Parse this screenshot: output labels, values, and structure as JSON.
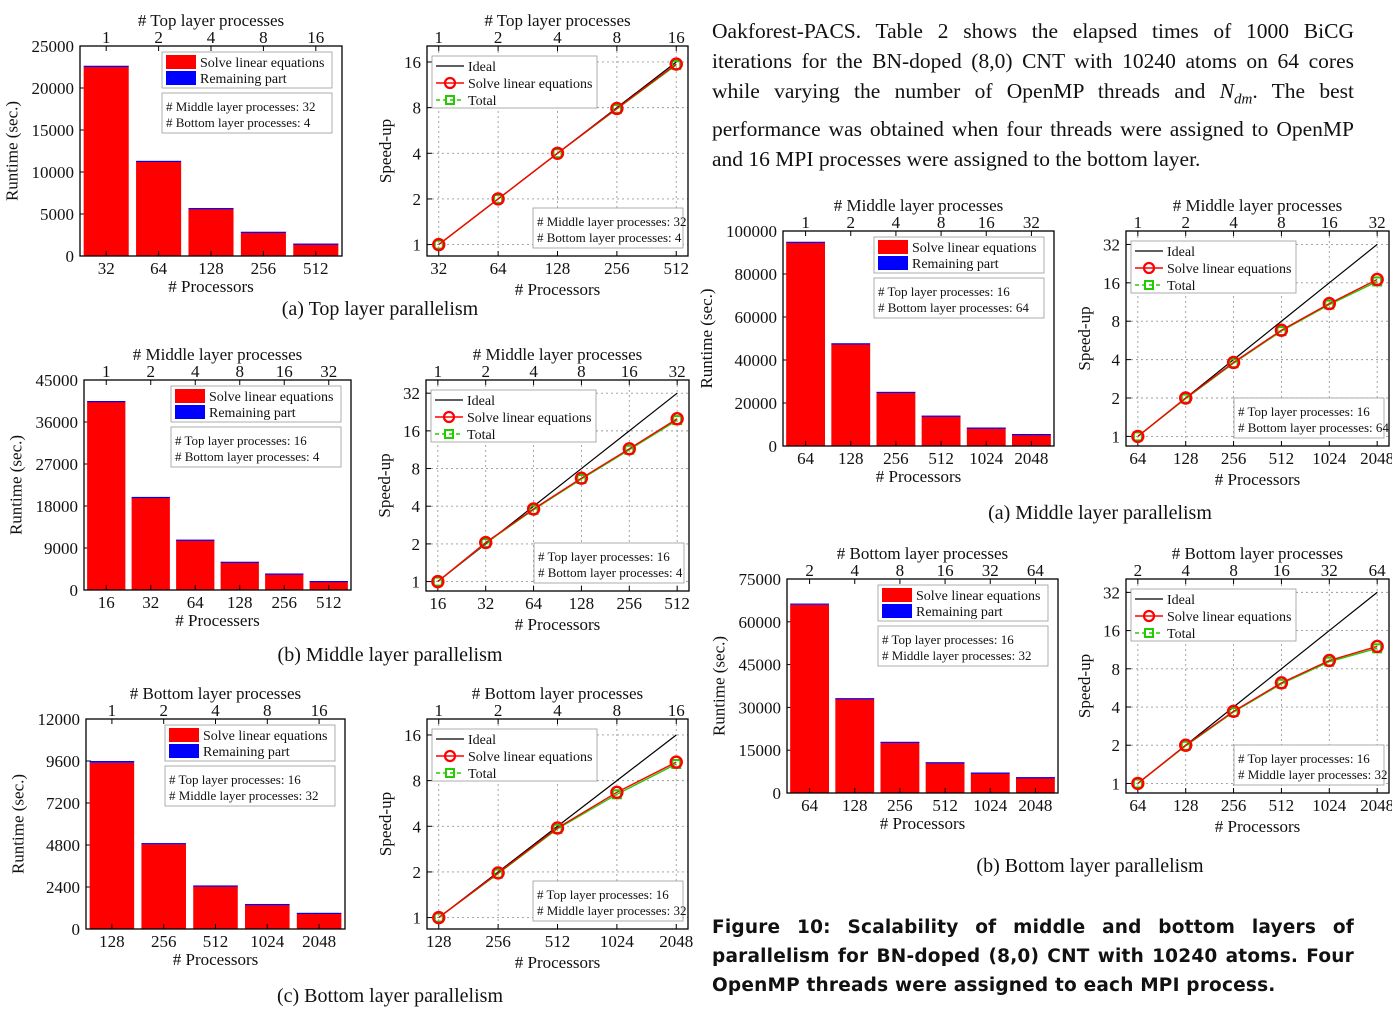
{
  "paragraph": "Oakforest-PACS. Table 2 shows the elapsed times of 1000 BiCG iterations for the BN-doped (8,0) CNT with 10240 atoms on 64 cores while varying the number of OpenMP threads and N_dm. The best performance was obtained when four threads were assigned to OpenMP and 16 MPI processes were assigned to the bottom layer.",
  "paragraph_parts": {
    "before": "Oakforest-PACS. Table 2 shows the elapsed times of 1000 BiCG iterations for the BN-doped (8,0) CNT with 10240 atoms on 64 cores while varying the number of OpenMP threads and ",
    "symbol": "N",
    "subscript": "dm",
    "after": ". The best performance was obtained when four threads were assigned to OpenMP and 16 MPI processes were assigned to the bottom layer."
  },
  "figure_caption": "Figure 10: Scalability of middle and bottom layers of parallelism for BN-doped (8,0) CNT with 10240 atoms. Four OpenMP threads were assigned to each MPI process.",
  "subcaptions": {
    "left_a": "(a) Top layer parallelism",
    "left_b": "(b) Middle layer parallelism",
    "left_c": "(c) Bottom layer parallelism",
    "right_a": "(a) Middle layer parallelism",
    "right_b": "(b) Bottom layer parallelism"
  },
  "colors": {
    "solve": "#ff0000",
    "remaining": "#0000ff",
    "ideal": "#000000",
    "solve_line": "#ff0000",
    "total": "#22cc00",
    "grid": "#9a9a9a"
  },
  "chart_data": [
    {
      "id": "L1bar",
      "type": "bar",
      "top_label": "# Top layer processes",
      "top_ticks": [
        "1",
        "2",
        "4",
        "8",
        "16"
      ],
      "categories": [
        "32",
        "64",
        "128",
        "256",
        "512"
      ],
      "xlabel": "# Processors",
      "ylabel": "Runtime (sec.)",
      "ylim": [
        0,
        25000
      ],
      "yticks": [
        "0",
        "5000",
        "10000",
        "15000",
        "20000",
        "25000"
      ],
      "series": [
        {
          "name": "Solve linear equations",
          "values": [
            22500,
            11250,
            5650,
            2850,
            1450
          ]
        },
        {
          "name": "Remaining part",
          "values": [
            150,
            80,
            60,
            40,
            30
          ]
        }
      ],
      "info": [
        "# Middle layer processes: 32",
        "# Bottom layer processes: 4"
      ]
    },
    {
      "id": "L1line",
      "type": "line",
      "top_label": "# Top layer processes",
      "top_ticks": [
        "1",
        "2",
        "4",
        "8",
        "16"
      ],
      "categories": [
        "32",
        "64",
        "128",
        "256",
        "512"
      ],
      "xlabel": "# Processors",
      "ylabel": "Speed-up",
      "yscale": "log2",
      "yticks": [
        "1",
        "2",
        "4",
        "8",
        "16"
      ],
      "series": [
        {
          "name": "Ideal",
          "values": [
            1,
            2,
            4,
            8,
            16
          ]
        },
        {
          "name": "Solve linear equations",
          "values": [
            1,
            2,
            4,
            7.9,
            15.5
          ]
        },
        {
          "name": "Total",
          "values": [
            1,
            2,
            4,
            7.85,
            15.3
          ]
        }
      ],
      "info": [
        "# Middle layer processes: 32",
        "# Bottom layer processes: 4"
      ]
    },
    {
      "id": "L2bar",
      "type": "bar",
      "top_label": "# Middle layer processes",
      "top_ticks": [
        "1",
        "2",
        "4",
        "8",
        "16",
        "32"
      ],
      "categories": [
        "16",
        "32",
        "64",
        "128",
        "256",
        "512"
      ],
      "xlabel": "# Processers",
      "ylabel": "Runtime (sec.)",
      "ylim": [
        0,
        45000
      ],
      "yticks": [
        "0",
        "9000",
        "18000",
        "27000",
        "36000",
        "45000"
      ],
      "series": [
        {
          "name": "Solve linear equations",
          "values": [
            40300,
            19800,
            10700,
            6000,
            3500,
            1900
          ]
        },
        {
          "name": "Remaining part",
          "values": [
            200,
            150,
            100,
            60,
            40,
            30
          ]
        }
      ],
      "info": [
        "# Top      layer processes: 16",
        "# Bottom layer processes: 4"
      ]
    },
    {
      "id": "L2line",
      "type": "line",
      "top_label": "# Middle layer processes",
      "top_ticks": [
        "1",
        "2",
        "4",
        "8",
        "16",
        "32"
      ],
      "categories": [
        "16",
        "32",
        "64",
        "128",
        "256",
        "512"
      ],
      "xlabel": "# Processors",
      "ylabel": "Speed-up",
      "yscale": "log2",
      "yticks": [
        "1",
        "2",
        "4",
        "8",
        "16",
        "32"
      ],
      "series": [
        {
          "name": "Ideal",
          "values": [
            1,
            2,
            4,
            8,
            16,
            32
          ]
        },
        {
          "name": "Solve linear equations",
          "values": [
            1,
            2.05,
            3.8,
            6.7,
            11.5,
            20
          ]
        },
        {
          "name": "Total",
          "values": [
            1,
            2.03,
            3.75,
            6.6,
            11.3,
            19.5
          ]
        }
      ],
      "info": [
        "# Top      layer processes: 16",
        "# Bottom layer processes: 4"
      ]
    },
    {
      "id": "L3bar",
      "type": "bar",
      "top_label": "# Bottom layer processes",
      "top_ticks": [
        "1",
        "2",
        "4",
        "8",
        "16"
      ],
      "categories": [
        "128",
        "256",
        "512",
        "1024",
        "2048"
      ],
      "xlabel": "# Processors",
      "ylabel": "Runtime (sec.)",
      "ylim": [
        0,
        12000
      ],
      "yticks": [
        "0",
        "2400",
        "4800",
        "7200",
        "9600",
        "12000"
      ],
      "series": [
        {
          "name": "Solve linear equations",
          "values": [
            9500,
            4850,
            2450,
            1400,
            900
          ]
        },
        {
          "name": "Remaining part",
          "values": [
            100,
            60,
            40,
            30,
            25
          ]
        }
      ],
      "info": [
        "# Top      layer processes: 16",
        "# Middle layer processes: 32"
      ]
    },
    {
      "id": "L3line",
      "type": "line",
      "top_label": "# Bottom layer processes",
      "top_ticks": [
        "1",
        "2",
        "4",
        "8",
        "16"
      ],
      "categories": [
        "128",
        "256",
        "512",
        "1024",
        "2048"
      ],
      "xlabel": "# Processors",
      "ylabel": "Speed-up",
      "yscale": "log2",
      "yticks": [
        "1",
        "2",
        "4",
        "8",
        "16"
      ],
      "series": [
        {
          "name": "Ideal",
          "values": [
            1,
            2,
            4,
            8,
            16
          ]
        },
        {
          "name": "Solve linear equations",
          "values": [
            1,
            1.97,
            3.9,
            6.7,
            10.6
          ]
        },
        {
          "name": "Total",
          "values": [
            1,
            1.95,
            3.85,
            6.5,
            10.3
          ]
        }
      ],
      "info": [
        "# Top      layer processes: 16",
        "# Middle layer processes: 32"
      ]
    },
    {
      "id": "R1bar",
      "type": "bar",
      "top_label": "# Middle layer processes",
      "top_ticks": [
        "1",
        "2",
        "4",
        "8",
        "16",
        "32"
      ],
      "categories": [
        "64",
        "128",
        "256",
        "512",
        "1024",
        "2048"
      ],
      "xlabel": "# Processors",
      "ylabel": "Runtime (sec.)",
      "ylim": [
        0,
        100000
      ],
      "yticks": [
        "0",
        "20000",
        "40000",
        "60000",
        "80000",
        "100000"
      ],
      "series": [
        {
          "name": "Solve linear equations",
          "values": [
            94500,
            47500,
            25000,
            14000,
            8500,
            5500
          ]
        },
        {
          "name": "Remaining part",
          "values": [
            500,
            300,
            200,
            150,
            100,
            80
          ]
        }
      ],
      "info": [
        "# Top      layer processes: 16",
        "# Bottom layer processes: 64"
      ]
    },
    {
      "id": "R1line",
      "type": "line",
      "top_label": "# Middle layer processes",
      "top_ticks": [
        "1",
        "2",
        "4",
        "8",
        "16",
        "32"
      ],
      "categories": [
        "64",
        "128",
        "256",
        "512",
        "1024",
        "2048"
      ],
      "xlabel": "# Processors",
      "ylabel": "Speed-up",
      "yscale": "log2",
      "yticks": [
        "1",
        "2",
        "4",
        "8",
        "16",
        "32"
      ],
      "series": [
        {
          "name": "Ideal",
          "values": [
            1,
            2,
            4,
            8,
            16,
            32
          ]
        },
        {
          "name": "Solve linear equations",
          "values": [
            1,
            2,
            3.8,
            6.8,
            11,
            17
          ]
        },
        {
          "name": "Total",
          "values": [
            1,
            1.98,
            3.75,
            6.7,
            10.8,
            16.4
          ]
        }
      ],
      "info": [
        "# Top      layer processes: 16",
        "# Bottom layer processes: 64"
      ]
    },
    {
      "id": "R2bar",
      "type": "bar",
      "top_label": "# Bottom layer processes",
      "top_ticks": [
        "2",
        "4",
        "8",
        "16",
        "32",
        "64"
      ],
      "categories": [
        "64",
        "128",
        "256",
        "512",
        "1024",
        "2048"
      ],
      "xlabel": "# Processors",
      "ylabel": "Runtime (sec.)",
      "ylim": [
        0,
        75000
      ],
      "yticks": [
        "0",
        "15000",
        "30000",
        "45000",
        "60000",
        "75000"
      ],
      "series": [
        {
          "name": "Solve linear equations",
          "values": [
            66000,
            33000,
            17800,
            10700,
            7100,
            5500
          ]
        },
        {
          "name": "Remaining part",
          "values": [
            400,
            250,
            150,
            100,
            80,
            60
          ]
        }
      ],
      "info": [
        "# Top      layer processes: 16",
        "# Middle layer processes: 32"
      ]
    },
    {
      "id": "R2line",
      "type": "line",
      "top_label": "# Bottom layer processes",
      "top_ticks": [
        "2",
        "4",
        "8",
        "16",
        "32",
        "64"
      ],
      "categories": [
        "64",
        "128",
        "256",
        "512",
        "1024",
        "2048"
      ],
      "xlabel": "# Processors",
      "ylabel": "Speed-up",
      "yscale": "log2",
      "yticks": [
        "1",
        "2",
        "4",
        "8",
        "16",
        "32"
      ],
      "series": [
        {
          "name": "Ideal",
          "values": [
            1,
            2,
            4,
            8,
            16,
            32
          ]
        },
        {
          "name": "Solve linear equations",
          "values": [
            1,
            2,
            3.7,
            6.2,
            9.3,
            12
          ]
        },
        {
          "name": "Total",
          "values": [
            1,
            1.98,
            3.65,
            6.1,
            9.1,
            11.6
          ]
        }
      ],
      "info": [
        "# Top      layer processes: 16",
        "# Middle layer processes: 32"
      ]
    }
  ]
}
